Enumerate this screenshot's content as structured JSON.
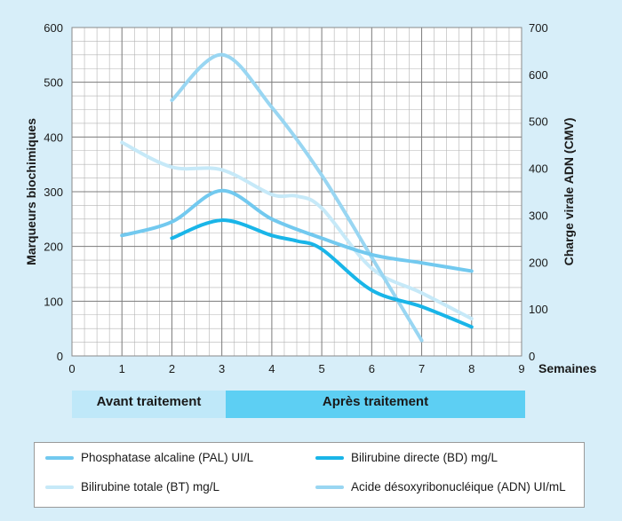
{
  "chart_data": {
    "type": "line",
    "xlabel": "Semaines",
    "ylabel_left": "Marqueurs biochimiques",
    "ylabel_right": "Charge virale ADN (CMV)",
    "x_ticks": [
      0,
      1,
      2,
      3,
      4,
      5,
      6,
      7,
      8,
      9
    ],
    "y_left_ticks": [
      0,
      100,
      200,
      300,
      400,
      500,
      600
    ],
    "y_right_ticks": [
      0,
      100,
      200,
      300,
      400,
      500,
      600,
      700
    ],
    "xlim": [
      0,
      9
    ],
    "ylim_left": [
      0,
      600
    ],
    "ylim_right": [
      0,
      700
    ],
    "grid": true,
    "phases": [
      {
        "label": "Avant traitement",
        "x_start": 0,
        "x_end": 3
      },
      {
        "label": "Après traitement",
        "x_start": 3,
        "x_end": 9
      }
    ],
    "series": [
      {
        "name": "Phosphatase alcaline (PAL) UI/L",
        "axis": "left",
        "color": "#72c9ef",
        "x": [
          1,
          2,
          3,
          4,
          5,
          6,
          7,
          8
        ],
        "y": [
          220,
          245,
          302,
          250,
          215,
          185,
          170,
          155
        ]
      },
      {
        "name": "Bilirubine directe (BD) mg/L",
        "axis": "left",
        "color": "#19b5e8",
        "x": [
          2,
          3,
          4,
          4.5,
          5,
          6,
          7,
          8
        ],
        "y": [
          215,
          248,
          220,
          210,
          195,
          120,
          90,
          53
        ]
      },
      {
        "name": "Bilirubine totale (BT) mg/L",
        "axis": "left",
        "color": "#c6e9f8",
        "x": [
          1,
          2,
          3,
          4,
          4.5,
          5,
          6,
          7,
          8
        ],
        "y": [
          390,
          345,
          340,
          295,
          292,
          270,
          160,
          115,
          68
        ]
      },
      {
        "name": "Acide désoxyribonucléique (ADN) UI/mL",
        "axis": "right",
        "color": "#99d6f2",
        "x": [
          2,
          3,
          4,
          5,
          6,
          7
        ],
        "y": [
          545,
          642,
          530,
          385,
          210,
          33
        ]
      }
    ]
  }
}
